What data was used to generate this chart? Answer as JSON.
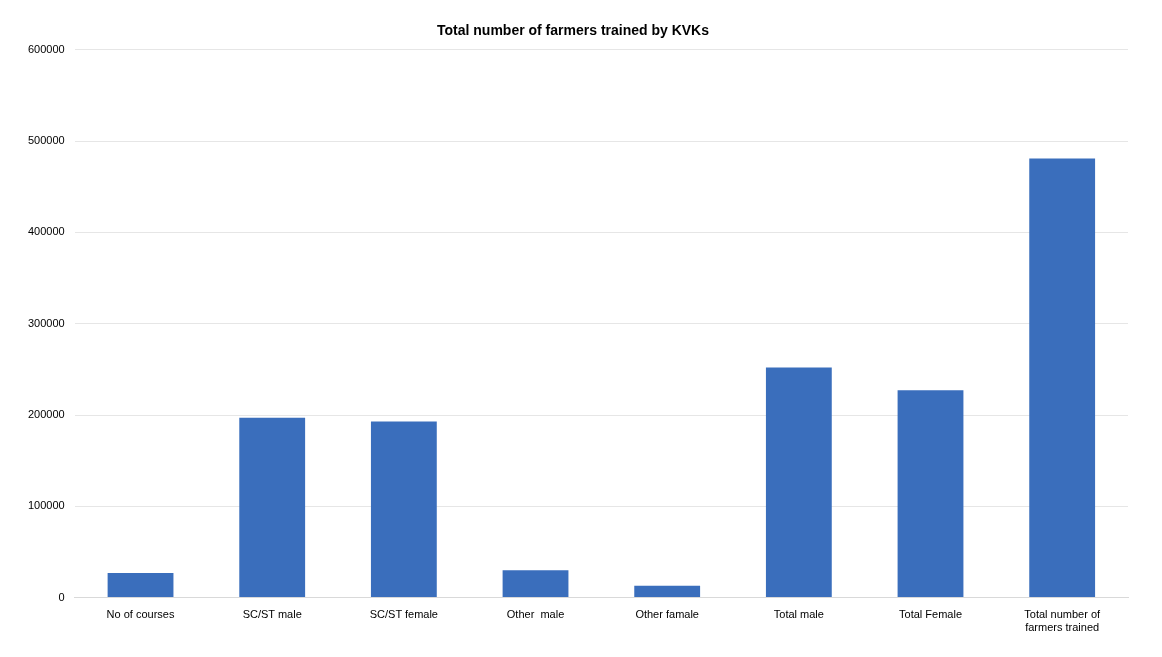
{
  "chart_data": {
    "type": "bar",
    "title": "Total number of farmers trained by KVKs",
    "categories": [
      "No of courses",
      "SC/ST male",
      "SC/ST female",
      "Other  male",
      "Other famale",
      "Total male",
      "Total Female",
      "Total number of farmers trained"
    ],
    "values": [
      27000,
      197000,
      193000,
      30000,
      13000,
      252000,
      227000,
      481000
    ],
    "color": "#3a6ebc",
    "ylim": [
      0,
      600000
    ],
    "yticks": [
      0,
      100000,
      200000,
      300000,
      400000,
      500000,
      600000
    ],
    "grid": "y",
    "legend": false
  }
}
